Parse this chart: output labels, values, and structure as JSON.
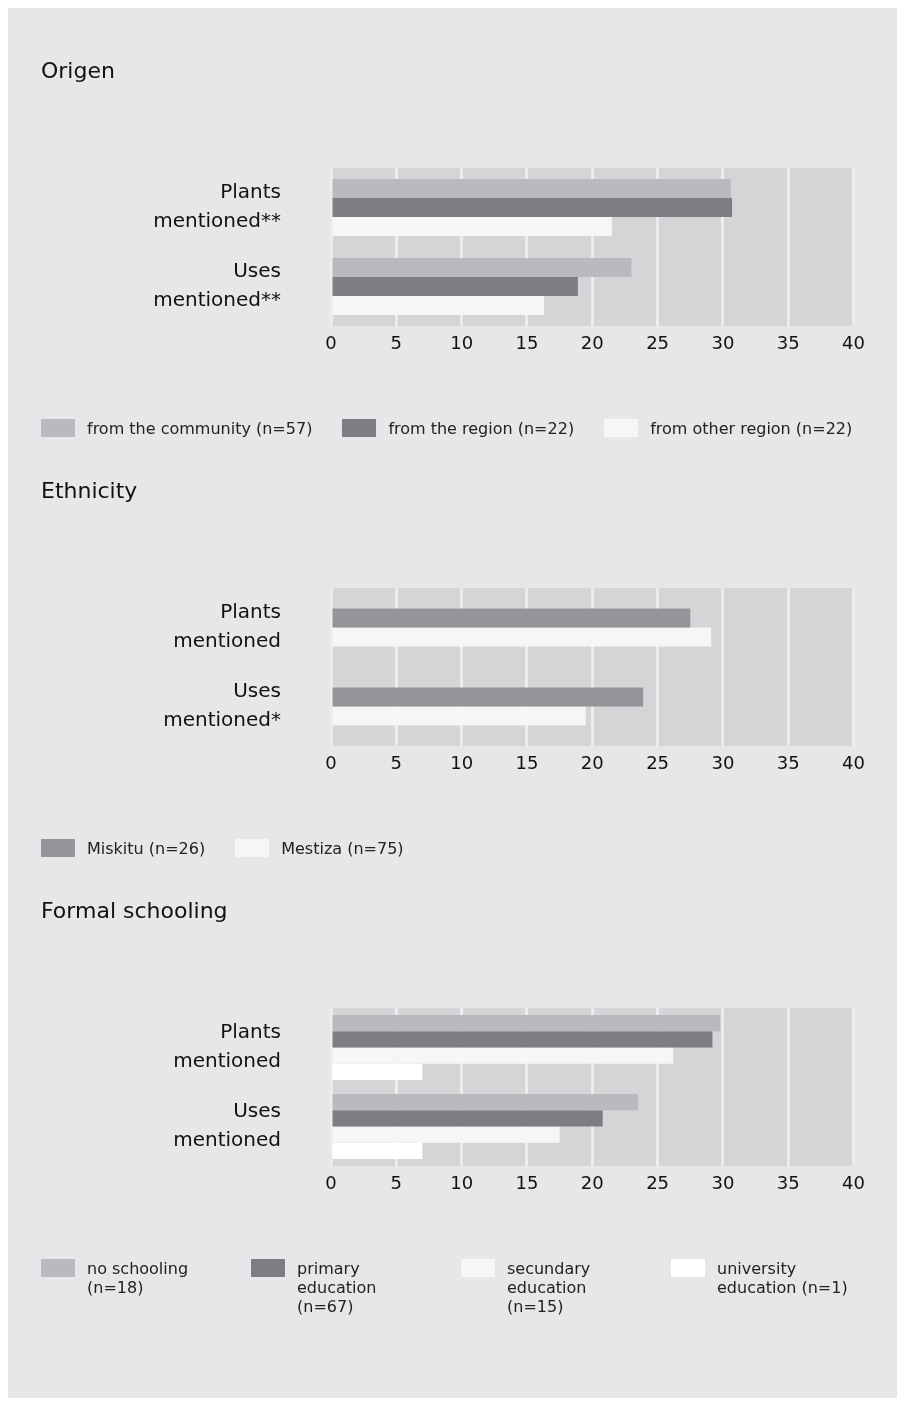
{
  "chart_data": [
    {
      "type": "bar",
      "orientation": "horizontal",
      "title": "Origen",
      "categories": [
        "Plants mentioned**",
        "Uses mentioned**"
      ],
      "series": [
        {
          "name": "from the community (n=57)",
          "color": "#b9babd",
          "values": [
            30.6,
            23.0
          ]
        },
        {
          "name": "from the region (n=22)",
          "color": "#7d7e81",
          "values": [
            30.7,
            18.9
          ]
        },
        {
          "name": "from other region (n=22)",
          "color": "#f6f6f6",
          "values": [
            21.5,
            16.3
          ]
        }
      ],
      "xlim": [
        0,
        40
      ],
      "xticks": [
        0,
        5,
        10,
        15,
        20,
        25,
        30,
        35,
        40
      ],
      "grid": "x",
      "legend": "bottom"
    },
    {
      "type": "bar",
      "orientation": "horizontal",
      "title": "Ethnicity",
      "categories": [
        "Plants mentioned",
        "Uses mentioned*"
      ],
      "series": [
        {
          "name": "Miskitu (n=26)",
          "color": "#949598",
          "values": [
            27.5,
            23.9
          ]
        },
        {
          "name": "Mestiza (n=75)",
          "color": "#f6f6f6",
          "values": [
            29.1,
            19.5
          ]
        }
      ],
      "xlim": [
        0,
        40
      ],
      "xticks": [
        0,
        5,
        10,
        15,
        20,
        25,
        30,
        35,
        40
      ],
      "grid": "x",
      "legend": "bottom"
    },
    {
      "type": "bar",
      "orientation": "horizontal",
      "title": "Formal schooling",
      "categories": [
        "Plants mentioned",
        "Uses mentioned"
      ],
      "series": [
        {
          "name": "no schooling (n=18)",
          "color": "#b9babd",
          "values": [
            29.8,
            23.5
          ]
        },
        {
          "name": "primary education (n=67)",
          "color": "#7d7e81",
          "values": [
            29.2,
            20.8
          ]
        },
        {
          "name": "secundary education (n=15)",
          "color": "#f6f6f6",
          "values": [
            26.2,
            17.5
          ]
        },
        {
          "name": "university education (n=1)",
          "color": "#ffffff",
          "values": [
            7.0,
            7.0
          ]
        }
      ],
      "xlim": [
        0,
        40
      ],
      "xticks": [
        0,
        5,
        10,
        15,
        20,
        25,
        30,
        35,
        40
      ],
      "grid": "x",
      "legend": "bottom"
    }
  ]
}
